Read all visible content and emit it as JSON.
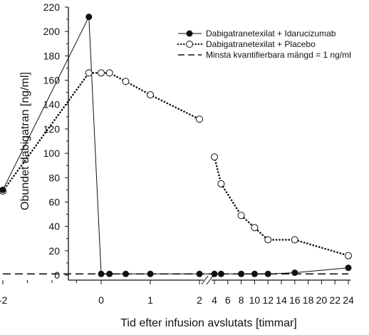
{
  "chart_data": {
    "type": "line",
    "xlabel": "Tid efter infusion avslutats [timmar]",
    "ylabel": "Obundet dabigatran [ng/ml]",
    "ylim": [
      0,
      220
    ],
    "y_ticks": [
      "0",
      "20",
      "40",
      "60",
      "80",
      "100",
      "120",
      "140",
      "160",
      "180",
      "200",
      "220"
    ],
    "x_axis": "broken between 2 and 4 hours",
    "x_ticks_left": [
      "-2",
      "0",
      "1",
      "2"
    ],
    "x_ticks_right": [
      "4",
      "6",
      "8",
      "10",
      "12",
      "14",
      "16",
      "18",
      "20",
      "22",
      "24"
    ],
    "grid": false,
    "legend_position": "top-right",
    "series": [
      {
        "name": "Dabigatranetexilat + Idarucizumab",
        "marker": "filled-circle",
        "line": "solid",
        "x": [
          -2,
          -0.25,
          0,
          0.17,
          0.5,
          1,
          2,
          4,
          5,
          8,
          10,
          12,
          16,
          24
        ],
        "y": [
          70,
          212,
          1,
          1,
          1,
          1,
          1,
          1,
          1,
          1,
          1,
          1,
          2,
          6
        ]
      },
      {
        "name": "Dabigatranetexilat + Placebo",
        "marker": "open-circle",
        "line": "dotted",
        "x": [
          -2,
          -0.25,
          0,
          0.17,
          0.5,
          1,
          2,
          4,
          5,
          8,
          10,
          12,
          16,
          24
        ],
        "y": [
          69,
          166,
          166,
          166,
          159,
          148,
          128,
          97,
          75,
          49,
          39,
          29,
          29,
          16
        ]
      },
      {
        "name": "Minsta kvantifierbara mängd = 1 ng/ml",
        "marker": "none",
        "line": "dashed",
        "x": [
          -2,
          24
        ],
        "y": [
          1,
          1
        ]
      }
    ]
  }
}
